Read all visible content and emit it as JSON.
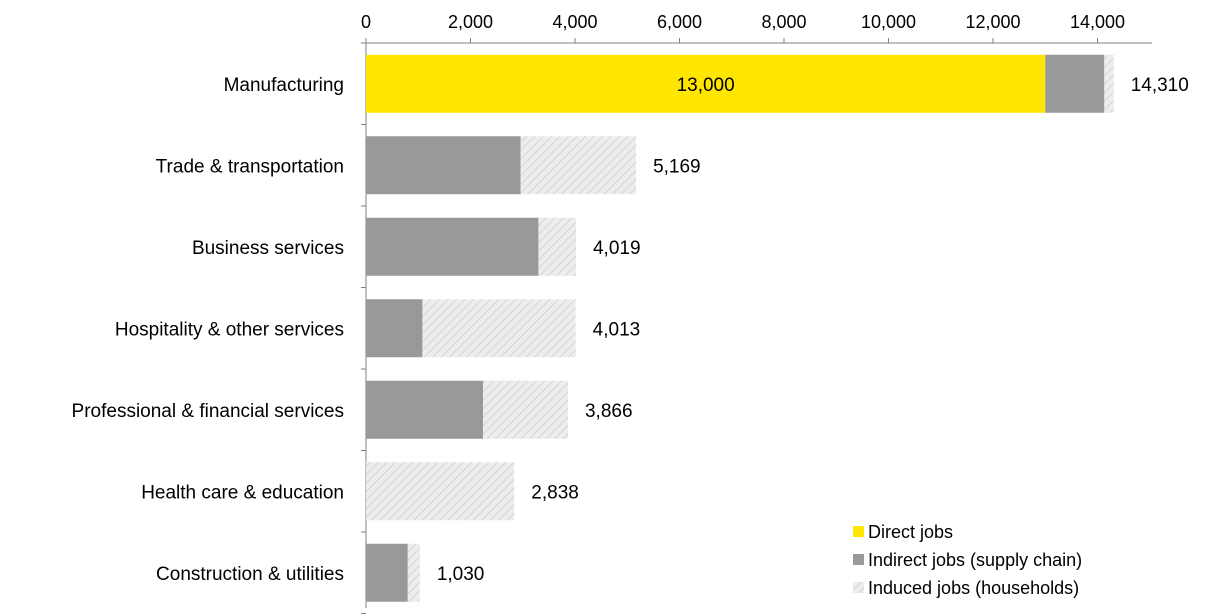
{
  "chart_data": {
    "type": "bar",
    "orientation": "horizontal",
    "stacked": true,
    "xlim": [
      0,
      15000
    ],
    "x_axis_position": "top",
    "x_ticks": [
      "0",
      "2,000",
      "4,000",
      "6,000",
      "8,000",
      "10,000",
      "12,000",
      "14,000"
    ],
    "x_tick_values": [
      0,
      2000,
      4000,
      6000,
      8000,
      10000,
      12000,
      14000
    ],
    "grid": false,
    "legend_position": "bottom-right",
    "categories": [
      "Manufacturing",
      "Trade & transportation",
      "Business services",
      "Hospitality & other services",
      "Professional & financial services",
      "Health care & education",
      "Construction & utilities"
    ],
    "series": [
      {
        "name": "Direct jobs",
        "color": "#FFE600",
        "pattern": "solid",
        "values": [
          13000,
          0,
          0,
          0,
          0,
          0,
          0
        ]
      },
      {
        "name": "Indirect jobs (supply chain)",
        "color": "#999999",
        "pattern": "solid",
        "values": [
          1130,
          2960,
          3300,
          1080,
          2240,
          0,
          800
        ]
      },
      {
        "name": "Induced jobs (households)",
        "color": "#E6E6E6",
        "pattern": "hatched",
        "values": [
          180,
          2209,
          719,
          2933,
          1626,
          2838,
          230
        ]
      }
    ],
    "totals": [
      14310,
      5169,
      4019,
      4013,
      3866,
      2838,
      1030
    ],
    "total_labels": [
      "14,310",
      "5,169",
      "4,019",
      "4,013",
      "3,866",
      "2,838",
      "1,030"
    ],
    "inbar_labels": [
      {
        "category": "Manufacturing",
        "series": "Direct jobs",
        "text": "13,000"
      }
    ]
  }
}
